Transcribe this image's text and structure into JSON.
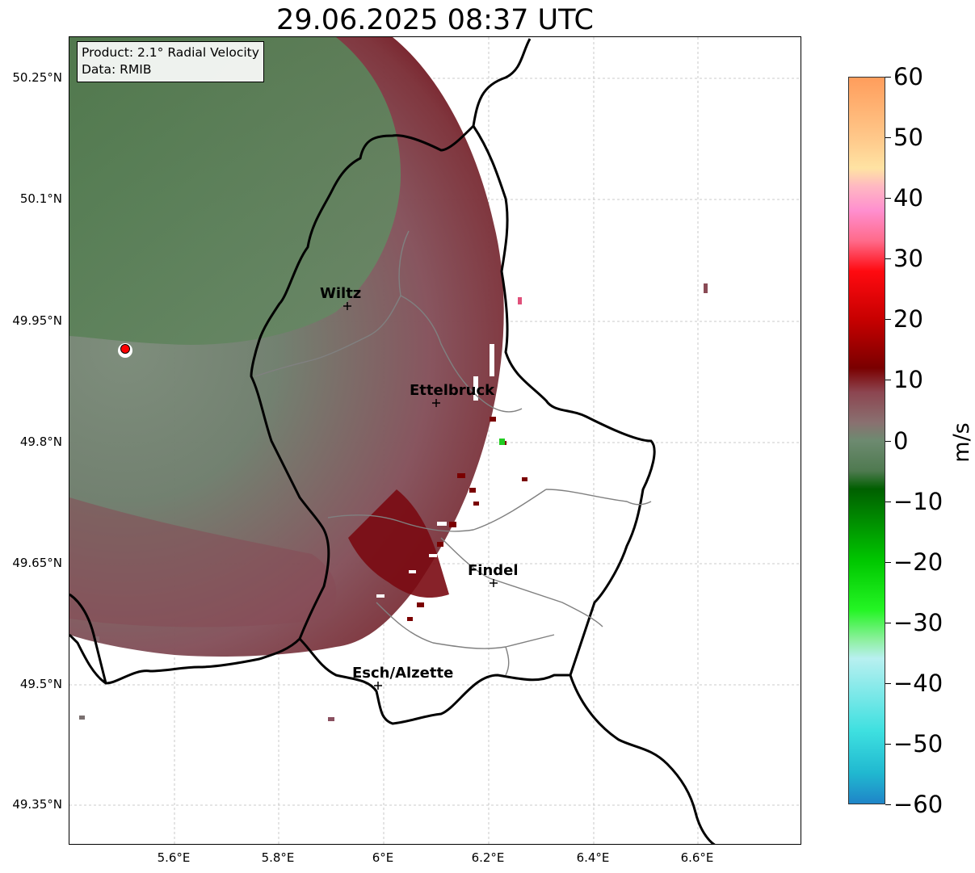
{
  "title": "29.06.2025 08:37 UTC",
  "info": {
    "product": "Product: 2.1° Radial Velocity",
    "data_source": "Data: RMIB"
  },
  "y_ticks": [
    "50.25°N",
    "50.1°N",
    "49.95°N",
    "49.8°N",
    "49.65°N",
    "49.5°N",
    "49.35°N"
  ],
  "x_ticks": [
    "5.6°E",
    "5.8°E",
    "6°E",
    "6.2°E",
    "6.4°E",
    "6.6°E"
  ],
  "cities": [
    {
      "name": "Wiltz"
    },
    {
      "name": "Ettelbruck"
    },
    {
      "name": "Findel"
    },
    {
      "name": "Esch/Alzette"
    }
  ],
  "colorbar": {
    "label": "m/s",
    "ticks": [
      "60",
      "50",
      "40",
      "30",
      "20",
      "10",
      "0",
      "−10",
      "−20",
      "−30",
      "−40",
      "−50",
      "−60"
    ],
    "range": [
      -60,
      60
    ],
    "stops": [
      {
        "v": 60,
        "c": "#ff9d5c"
      },
      {
        "v": 50,
        "c": "#ffc88a"
      },
      {
        "v": 45,
        "c": "#ffe3a3"
      },
      {
        "v": 42,
        "c": "#ffb8c2"
      },
      {
        "v": 38,
        "c": "#ff8fcf"
      },
      {
        "v": 33,
        "c": "#ff6a8a"
      },
      {
        "v": 28,
        "c": "#ff0a10"
      },
      {
        "v": 20,
        "c": "#c70000"
      },
      {
        "v": 12,
        "c": "#7a0000"
      },
      {
        "v": 8,
        "c": "#8c4550"
      },
      {
        "v": 3,
        "c": "#8a7070"
      },
      {
        "v": 0,
        "c": "#6d8a70"
      },
      {
        "v": -5,
        "c": "#4f7a50"
      },
      {
        "v": -8,
        "c": "#005f00"
      },
      {
        "v": -20,
        "c": "#00c800"
      },
      {
        "v": -28,
        "c": "#24f524"
      },
      {
        "v": -33,
        "c": "#8ef0a0"
      },
      {
        "v": -36,
        "c": "#b8f0f0"
      },
      {
        "v": -48,
        "c": "#3ee0e0"
      },
      {
        "v": -55,
        "c": "#20b8d0"
      },
      {
        "v": -60,
        "c": "#1f85c8"
      }
    ]
  },
  "colors": {
    "outbound_far": "#5b8158",
    "outbound_near": "#7a8a78",
    "inbound_weak": "#8a6a70",
    "inbound_mid": "#85404a",
    "inbound_strong": "#700000",
    "radar_marker": "#ff0000",
    "border": "#000000",
    "canton_border": "#808080"
  }
}
